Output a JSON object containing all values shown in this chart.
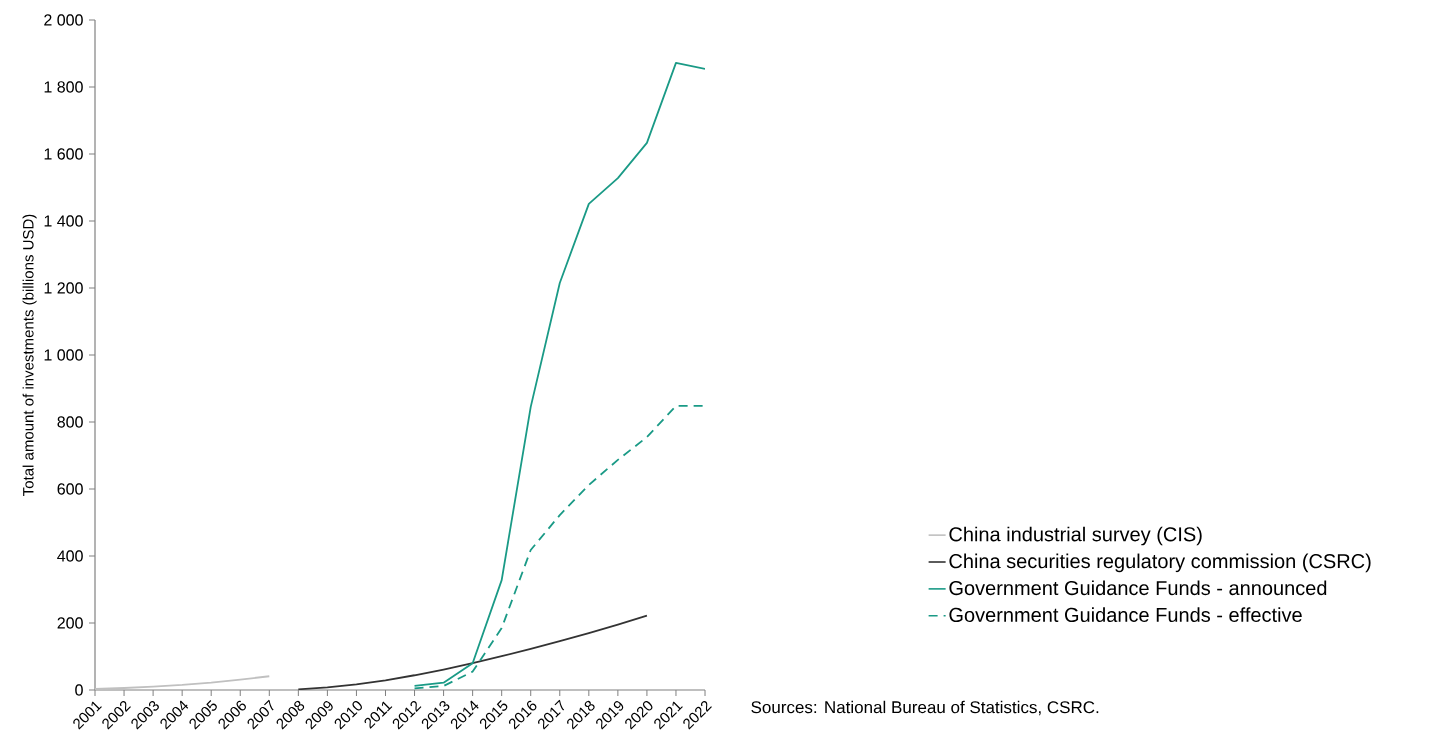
{
  "chart_data": {
    "type": "line",
    "ylabel": "Total amount of investments (billions USD)",
    "categories": [
      "2001",
      "2002",
      "2003",
      "2004",
      "2005",
      "2006",
      "2007",
      "2008",
      "2009",
      "2010",
      "2011",
      "2012",
      "2013",
      "2014",
      "2015",
      "2016",
      "2017",
      "2018",
      "2019",
      "2020",
      "2021",
      "2022"
    ],
    "series": [
      {
        "name": "China industrial survey (CIS)",
        "color": "#c0c0c0",
        "line_style": "solid",
        "values": [
          3,
          6,
          10,
          15,
          22,
          31,
          41,
          null,
          null,
          null,
          null,
          null,
          null,
          null,
          null,
          null,
          null,
          null,
          null,
          null,
          null,
          null
        ]
      },
      {
        "name": "China securities regulatory commission (CSRC)",
        "color": "#333333",
        "line_style": "solid",
        "values": [
          null,
          null,
          null,
          null,
          null,
          null,
          null,
          2,
          8,
          17,
          29,
          44,
          61,
          80,
          101,
          123,
          146,
          170,
          195,
          222,
          null,
          null
        ]
      },
      {
        "name": "Government Guidance Funds - announced",
        "color": "#1a9a86",
        "line_style": "solid",
        "values": [
          null,
          null,
          null,
          null,
          null,
          null,
          null,
          null,
          null,
          null,
          null,
          12,
          22,
          80,
          328,
          845,
          1215,
          1451,
          1528,
          1633,
          1872,
          1854
        ]
      },
      {
        "name": "Government Guidance Funds - effective",
        "color": "#1a9a86",
        "line_style": "dashed",
        "values": [
          null,
          null,
          null,
          null,
          null,
          null,
          null,
          null,
          null,
          null,
          null,
          5,
          12,
          55,
          185,
          418,
          522,
          612,
          687,
          755,
          848,
          848
        ]
      }
    ],
    "ylim": [
      0,
      2000
    ],
    "yticks": [
      0,
      200,
      400,
      600,
      800,
      {
        "value": 1000,
        "label": "1 000"
      },
      {
        "value": 1200,
        "label": "1 200"
      },
      {
        "value": 1400,
        "label": "1 400"
      },
      {
        "value": 1600,
        "label": "1 600"
      },
      {
        "value": 1800,
        "label": "1 800"
      },
      {
        "value": 2000,
        "label": "2 000"
      }
    ],
    "grid": false,
    "legend": "right",
    "marker": "none",
    "annotations": [
      "Sources: National Bureau of Statistics, CSRC."
    ]
  }
}
